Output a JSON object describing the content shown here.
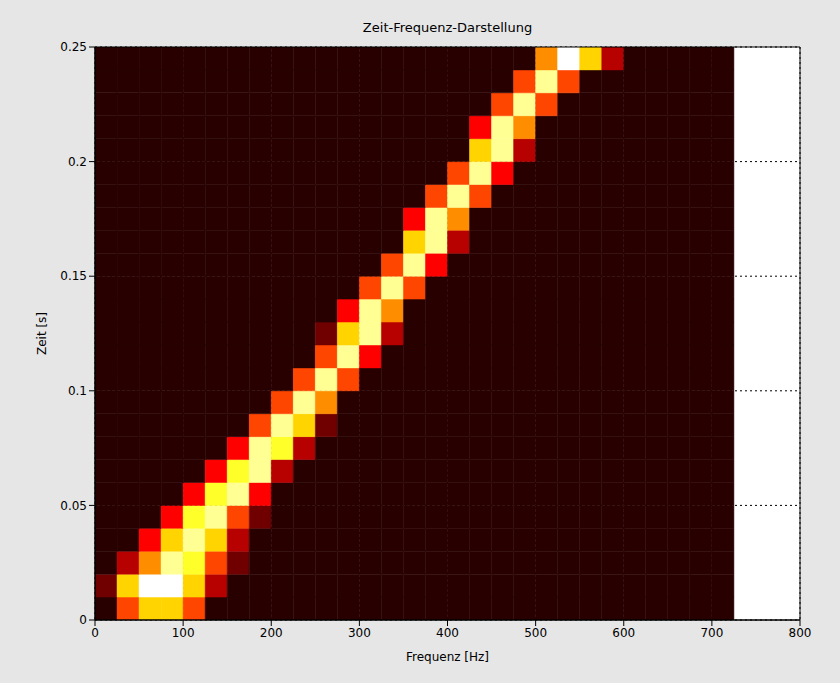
{
  "chart_data": {
    "type": "heatmap",
    "title": "Zeit-Frequenz-Darstellung",
    "x_label": "Frequenz [Hz]",
    "y_label": "Zeit [s]",
    "xlim": [
      0,
      800
    ],
    "ylim": [
      0,
      0.25
    ],
    "xticks": [
      0,
      100,
      200,
      300,
      400,
      500,
      600,
      700,
      800
    ],
    "yticks": [
      0,
      0.05,
      0.1,
      0.15,
      0.2,
      0.25
    ],
    "grid": true,
    "x_bins": [
      0,
      25,
      50,
      75,
      100,
      125,
      150,
      175,
      200,
      225,
      250,
      275,
      300,
      325,
      350,
      375,
      400,
      425,
      450,
      475,
      500,
      525,
      550,
      575,
      600,
      625,
      650,
      675,
      700,
      725
    ],
    "y_bins": [
      0,
      0.01,
      0.02,
      0.03,
      0.04,
      0.05,
      0.06,
      0.07,
      0.08,
      0.09,
      0.1,
      0.11,
      0.12,
      0.13,
      0.14,
      0.15,
      0.16,
      0.17,
      0.18,
      0.19,
      0.2,
      0.21,
      0.22,
      0.23,
      0.24,
      0.25
    ],
    "cells": [
      [
        0,
        4,
        6,
        6,
        4,
        0,
        0,
        0,
        0,
        0,
        0,
        0,
        0,
        0,
        0,
        0,
        0,
        0,
        0,
        0,
        0,
        0,
        0,
        0,
        0,
        0,
        0,
        0,
        0
      ],
      [
        1,
        6,
        9,
        9,
        6,
        2,
        0,
        0,
        0,
        0,
        0,
        0,
        0,
        0,
        0,
        0,
        0,
        0,
        0,
        0,
        0,
        0,
        0,
        0,
        0,
        0,
        0,
        0,
        0
      ],
      [
        0,
        2,
        5,
        8,
        7,
        4,
        1,
        0,
        0,
        0,
        0,
        0,
        0,
        0,
        0,
        0,
        0,
        0,
        0,
        0,
        0,
        0,
        0,
        0,
        0,
        0,
        0,
        0,
        0
      ],
      [
        0,
        0,
        3,
        6,
        8,
        6,
        2,
        0,
        0,
        0,
        0,
        0,
        0,
        0,
        0,
        0,
        0,
        0,
        0,
        0,
        0,
        0,
        0,
        0,
        0,
        0,
        0,
        0,
        0
      ],
      [
        0,
        0,
        0,
        3,
        7,
        8,
        4,
        1,
        0,
        0,
        0,
        0,
        0,
        0,
        0,
        0,
        0,
        0,
        0,
        0,
        0,
        0,
        0,
        0,
        0,
        0,
        0,
        0,
        0
      ],
      [
        0,
        0,
        0,
        0,
        3,
        7,
        8,
        3,
        0,
        0,
        0,
        0,
        0,
        0,
        0,
        0,
        0,
        0,
        0,
        0,
        0,
        0,
        0,
        0,
        0,
        0,
        0,
        0,
        0
      ],
      [
        0,
        0,
        0,
        0,
        0,
        3,
        7,
        8,
        2,
        0,
        0,
        0,
        0,
        0,
        0,
        0,
        0,
        0,
        0,
        0,
        0,
        0,
        0,
        0,
        0,
        0,
        0,
        0,
        0
      ],
      [
        0,
        0,
        0,
        0,
        0,
        0,
        3,
        8,
        7,
        2,
        0,
        0,
        0,
        0,
        0,
        0,
        0,
        0,
        0,
        0,
        0,
        0,
        0,
        0,
        0,
        0,
        0,
        0,
        0
      ],
      [
        0,
        0,
        0,
        0,
        0,
        0,
        0,
        4,
        8,
        6,
        1,
        0,
        0,
        0,
        0,
        0,
        0,
        0,
        0,
        0,
        0,
        0,
        0,
        0,
        0,
        0,
        0,
        0,
        0
      ],
      [
        0,
        0,
        0,
        0,
        0,
        0,
        0,
        0,
        4,
        8,
        5,
        0,
        0,
        0,
        0,
        0,
        0,
        0,
        0,
        0,
        0,
        0,
        0,
        0,
        0,
        0,
        0,
        0,
        0
      ],
      [
        0,
        0,
        0,
        0,
        0,
        0,
        0,
        0,
        0,
        4,
        8,
        4,
        0,
        0,
        0,
        0,
        0,
        0,
        0,
        0,
        0,
        0,
        0,
        0,
        0,
        0,
        0,
        0,
        0
      ],
      [
        0,
        0,
        0,
        0,
        0,
        0,
        0,
        0,
        0,
        0,
        4,
        8,
        3,
        0,
        0,
        0,
        0,
        0,
        0,
        0,
        0,
        0,
        0,
        0,
        0,
        0,
        0,
        0,
        0
      ],
      [
        0,
        0,
        0,
        0,
        0,
        0,
        0,
        0,
        0,
        0,
        1,
        6,
        8,
        2,
        0,
        0,
        0,
        0,
        0,
        0,
        0,
        0,
        0,
        0,
        0,
        0,
        0,
        0,
        0
      ],
      [
        0,
        0,
        0,
        0,
        0,
        0,
        0,
        0,
        0,
        0,
        0,
        3,
        8,
        5,
        0,
        0,
        0,
        0,
        0,
        0,
        0,
        0,
        0,
        0,
        0,
        0,
        0,
        0,
        0
      ],
      [
        0,
        0,
        0,
        0,
        0,
        0,
        0,
        0,
        0,
        0,
        0,
        0,
        4,
        8,
        4,
        0,
        0,
        0,
        0,
        0,
        0,
        0,
        0,
        0,
        0,
        0,
        0,
        0,
        0
      ],
      [
        0,
        0,
        0,
        0,
        0,
        0,
        0,
        0,
        0,
        0,
        0,
        0,
        0,
        4,
        8,
        3,
        0,
        0,
        0,
        0,
        0,
        0,
        0,
        0,
        0,
        0,
        0,
        0,
        0
      ],
      [
        0,
        0,
        0,
        0,
        0,
        0,
        0,
        0,
        0,
        0,
        0,
        0,
        0,
        0,
        6,
        8,
        2,
        0,
        0,
        0,
        0,
        0,
        0,
        0,
        0,
        0,
        0,
        0,
        0
      ],
      [
        0,
        0,
        0,
        0,
        0,
        0,
        0,
        0,
        0,
        0,
        0,
        0,
        0,
        0,
        3,
        8,
        5,
        0,
        0,
        0,
        0,
        0,
        0,
        0,
        0,
        0,
        0,
        0,
        0
      ],
      [
        0,
        0,
        0,
        0,
        0,
        0,
        0,
        0,
        0,
        0,
        0,
        0,
        0,
        0,
        0,
        4,
        8,
        4,
        0,
        0,
        0,
        0,
        0,
        0,
        0,
        0,
        0,
        0,
        0
      ],
      [
        0,
        0,
        0,
        0,
        0,
        0,
        0,
        0,
        0,
        0,
        0,
        0,
        0,
        0,
        0,
        0,
        4,
        8,
        3,
        0,
        0,
        0,
        0,
        0,
        0,
        0,
        0,
        0,
        0
      ],
      [
        0,
        0,
        0,
        0,
        0,
        0,
        0,
        0,
        0,
        0,
        0,
        0,
        0,
        0,
        0,
        0,
        0,
        6,
        8,
        2,
        0,
        0,
        0,
        0,
        0,
        0,
        0,
        0,
        0
      ],
      [
        0,
        0,
        0,
        0,
        0,
        0,
        0,
        0,
        0,
        0,
        0,
        0,
        0,
        0,
        0,
        0,
        0,
        3,
        8,
        5,
        0,
        0,
        0,
        0,
        0,
        0,
        0,
        0,
        0
      ],
      [
        0,
        0,
        0,
        0,
        0,
        0,
        0,
        0,
        0,
        0,
        0,
        0,
        0,
        0,
        0,
        0,
        0,
        0,
        4,
        8,
        4,
        0,
        0,
        0,
        0,
        0,
        0,
        0,
        0
      ],
      [
        0,
        0,
        0,
        0,
        0,
        0,
        0,
        0,
        0,
        0,
        0,
        0,
        0,
        0,
        0,
        0,
        0,
        0,
        0,
        4,
        8,
        4,
        0,
        0,
        0,
        0,
        0,
        0,
        0
      ],
      [
        0,
        0,
        0,
        0,
        0,
        0,
        0,
        0,
        0,
        0,
        0,
        0,
        0,
        0,
        0,
        0,
        0,
        0,
        0,
        0,
        5,
        9,
        6,
        2,
        0,
        0,
        0,
        0,
        0
      ]
    ]
  }
}
